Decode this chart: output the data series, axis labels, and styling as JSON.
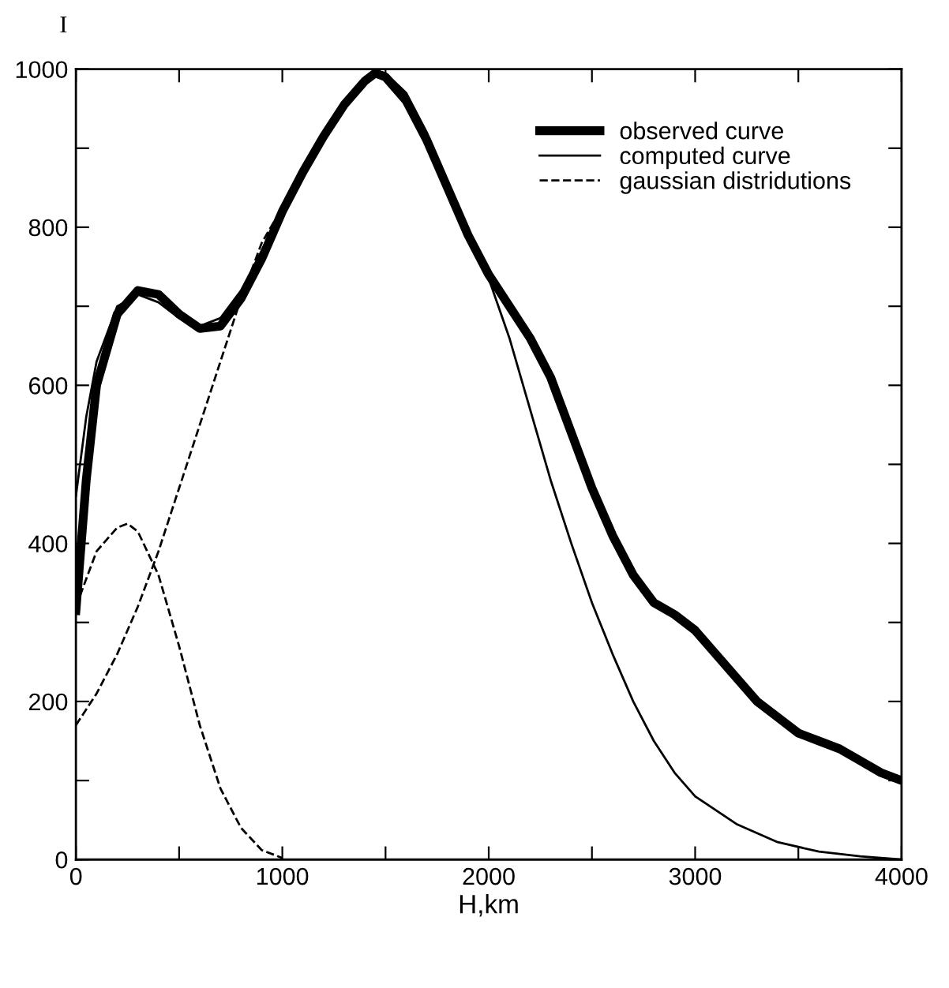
{
  "chart_data": {
    "type": "line",
    "xlabel": "H,km",
    "ylabel": "I",
    "xlim": [
      0,
      4000
    ],
    "ylim": [
      0,
      1000
    ],
    "xticks": [
      0,
      {
        "value": 500,
        "label": null
      },
      1000,
      {
        "value": 1500,
        "label": null
      },
      2000,
      {
        "value": 2500,
        "label": null
      },
      3000,
      {
        "value": 3500,
        "label": null
      },
      4000
    ],
    "yticks": [
      0,
      {
        "value": 100,
        "label": null
      },
      200,
      {
        "value": 300,
        "label": null
      },
      400,
      {
        "value": 500,
        "label": null
      },
      600,
      {
        "value": 700,
        "label": null
      },
      800,
      {
        "value": 900,
        "label": null
      },
      1000
    ],
    "grid": false,
    "legend": "top right",
    "marker": "none",
    "series": [
      {
        "name": "observed curve",
        "color": "#000000",
        "line_style": "solid",
        "x": [
          0,
          50,
          100,
          200,
          300,
          400,
          500,
          600,
          700,
          800,
          900,
          1000,
          1100,
          1200,
          1300,
          1400,
          1450,
          1500,
          1600,
          1700,
          1800,
          1900,
          2000,
          2100,
          2200,
          2300,
          2400,
          2500,
          2600,
          2700,
          2800,
          2900,
          3000,
          3100,
          3200,
          3300,
          3400,
          3500,
          3600,
          3700,
          3800,
          3900,
          4000
        ],
        "values": [
          315,
          480,
          600,
          690,
          720,
          715,
          690,
          672,
          675,
          710,
          760,
          820,
          870,
          915,
          955,
          985,
          995,
          990,
          960,
          910,
          850,
          790,
          740,
          700,
          660,
          610,
          540,
          470,
          410,
          360,
          325,
          310,
          290,
          260,
          230,
          200,
          180,
          160,
          150,
          140,
          125,
          110,
          100
        ]
      },
      {
        "name": "computed curve",
        "color": "#000000",
        "line_style": "solid",
        "x": [
          0,
          50,
          100,
          200,
          300,
          400,
          500,
          600,
          700,
          800,
          900,
          1000,
          1100,
          1200,
          1300,
          1400,
          1450,
          1500,
          1600,
          1700,
          1800,
          1900,
          2000,
          2100,
          2200,
          2300,
          2400,
          2500,
          2600,
          2700,
          2800,
          2900,
          3000,
          3200,
          3400,
          3600,
          3800,
          4000
        ],
        "values": [
          460,
          560,
          630,
          700,
          715,
          705,
          685,
          675,
          685,
          720,
          770,
          825,
          875,
          920,
          960,
          990,
          998,
          995,
          970,
          920,
          855,
          790,
          735,
          660,
          570,
          480,
          400,
          325,
          260,
          200,
          150,
          110,
          80,
          45,
          22,
          10,
          4,
          0
        ]
      },
      {
        "name": "gaussian distridutions",
        "color": "#000000",
        "line_style": "dashed",
        "x": [
          0,
          100,
          200,
          250,
          300,
          400,
          500,
          600,
          700,
          800,
          900,
          1000
        ],
        "values": [
          320,
          390,
          420,
          425,
          415,
          360,
          270,
          170,
          90,
          40,
          12,
          2
        ]
      },
      {
        "color": "#000000",
        "line_style": "dashed",
        "x": [
          0,
          100,
          200,
          300,
          400,
          500,
          600,
          700,
          800,
          900,
          1000
        ],
        "values": [
          170,
          210,
          260,
          320,
          390,
          470,
          550,
          630,
          710,
          780,
          825
        ]
      }
    ]
  }
}
